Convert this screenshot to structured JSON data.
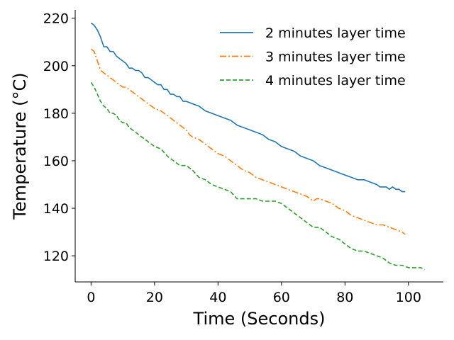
{
  "chart_data": {
    "type": "line",
    "title": "",
    "xlabel": "Time (Seconds)",
    "ylabel": "Temperature (°C)",
    "xlim": [
      -5,
      111
    ],
    "ylim": [
      109,
      223.5
    ],
    "xticks": [
      0,
      20,
      40,
      60,
      80,
      100
    ],
    "yticks": [
      120,
      140,
      160,
      180,
      200,
      220
    ],
    "grid": false,
    "legend_position": "top-right",
    "series": [
      {
        "name": "2 minutes layer time",
        "color": "#1f77b4",
        "dash": "solid",
        "x": [
          0,
          1,
          2,
          3,
          4,
          5,
          6,
          7,
          8,
          9,
          10,
          11,
          12,
          13,
          14,
          15,
          16,
          17,
          18,
          19,
          20,
          21,
          22,
          23,
          24,
          25,
          26,
          27,
          28,
          29,
          30,
          32,
          34,
          36,
          38,
          40,
          42,
          44,
          46,
          48,
          50,
          52,
          54,
          56,
          58,
          60,
          62,
          64,
          66,
          68,
          70,
          72,
          74,
          76,
          78,
          80,
          82,
          84,
          86,
          88,
          90,
          91,
          92,
          93,
          94,
          95,
          96,
          97,
          98,
          99
        ],
        "y": [
          218,
          217,
          215,
          212,
          208,
          208,
          206,
          206,
          204,
          203,
          202,
          201,
          199,
          199,
          198,
          198,
          197,
          195,
          195,
          194,
          193,
          192,
          192,
          190,
          190,
          188,
          188,
          187,
          187,
          185,
          185,
          184,
          183,
          181,
          180,
          179,
          178,
          177,
          175,
          174,
          173,
          172,
          171,
          169,
          168,
          166,
          165,
          164,
          162,
          161,
          160,
          158,
          157,
          156,
          155,
          154,
          153,
          152,
          152,
          151,
          150,
          149,
          149,
          149,
          148,
          149,
          148,
          148,
          147,
          147
        ],
        "visible_segment": "x 0–99"
      },
      {
        "name": "3 minutes layer time",
        "color": "#ff7f0e",
        "dash": "dashdot",
        "x": [
          0,
          1,
          2,
          3,
          4,
          5,
          6,
          7,
          8,
          9,
          10,
          11,
          12,
          14,
          16,
          18,
          20,
          22,
          24,
          26,
          28,
          30,
          31,
          32,
          34,
          36,
          38,
          40,
          42,
          44,
          46,
          48,
          50,
          52,
          54,
          56,
          58,
          60,
          62,
          64,
          66,
          68,
          70,
          71,
          72,
          74,
          76,
          78,
          80,
          82,
          84,
          86,
          88,
          90,
          92,
          94,
          96,
          98,
          99
        ],
        "y": [
          207,
          206,
          202,
          198,
          197,
          196,
          195,
          194,
          193,
          192,
          191,
          191,
          190,
          188,
          186,
          184,
          182,
          181,
          179,
          177,
          175,
          173,
          171,
          170,
          169,
          167,
          165,
          163,
          162,
          160,
          158,
          156,
          155,
          153,
          152,
          151,
          150,
          149,
          148,
          147,
          146,
          145,
          143,
          144,
          144,
          143,
          142,
          140,
          139,
          137,
          136,
          135,
          134,
          133,
          133,
          132,
          131,
          130,
          129
        ]
      },
      {
        "name": "4 minutes layer time",
        "color": "#2ca02c",
        "dash": "dashed",
        "x": [
          0,
          1,
          2,
          3,
          4,
          5,
          6,
          7,
          8,
          9,
          10,
          11,
          12,
          14,
          16,
          18,
          20,
          22,
          24,
          26,
          28,
          30,
          32,
          34,
          36,
          38,
          40,
          42,
          44,
          46,
          48,
          50,
          52,
          54,
          56,
          58,
          60,
          61,
          62,
          64,
          66,
          68,
          70,
          72,
          74,
          76,
          78,
          80,
          82,
          84,
          86,
          88,
          90,
          92,
          94,
          96,
          98,
          100,
          102,
          104,
          105
        ],
        "y": [
          193,
          191,
          188,
          185,
          183,
          182,
          180,
          180,
          179,
          177,
          176,
          176,
          174,
          172,
          170,
          168,
          166,
          165,
          162,
          160,
          158,
          158,
          156,
          153,
          152,
          150,
          149,
          148,
          147,
          144,
          144,
          144,
          144,
          143,
          143,
          143,
          142,
          141,
          140,
          138,
          136,
          134,
          132,
          132,
          130,
          128,
          127,
          125,
          123,
          122,
          122,
          121,
          120,
          119,
          117,
          116,
          116,
          115,
          115,
          115,
          114
        ]
      }
    ]
  }
}
